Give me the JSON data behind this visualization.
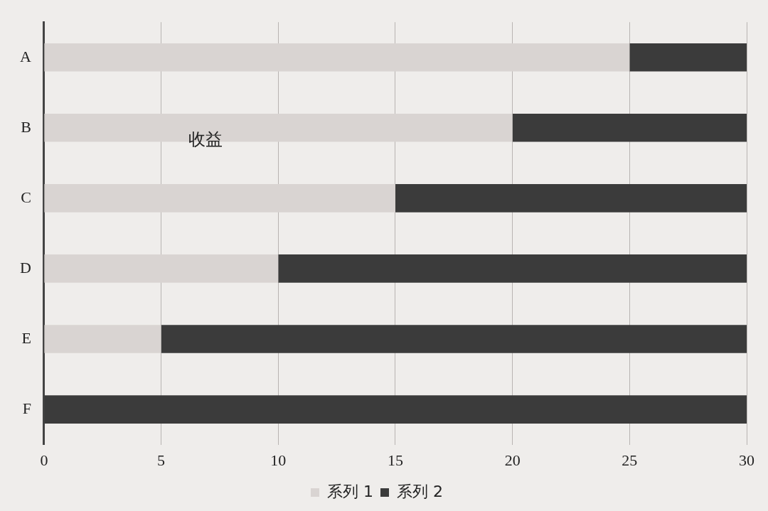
{
  "chart_data": {
    "type": "bar",
    "orientation": "horizontal",
    "stacked": true,
    "categories": [
      "A",
      "B",
      "C",
      "D",
      "E",
      "F"
    ],
    "series": [
      {
        "name": "系列 1",
        "color": "#d9d4d2",
        "values": [
          25,
          20,
          15,
          10,
          5,
          0
        ]
      },
      {
        "name": "系列 2",
        "color": "#3b3b3b",
        "values": [
          5,
          10,
          15,
          20,
          25,
          30
        ]
      }
    ],
    "xlim": [
      0,
      30
    ],
    "xticks": [
      0,
      5,
      10,
      15,
      20,
      25,
      30
    ],
    "grid": "x",
    "legend": "bottom",
    "annotations": [
      "收益"
    ]
  }
}
